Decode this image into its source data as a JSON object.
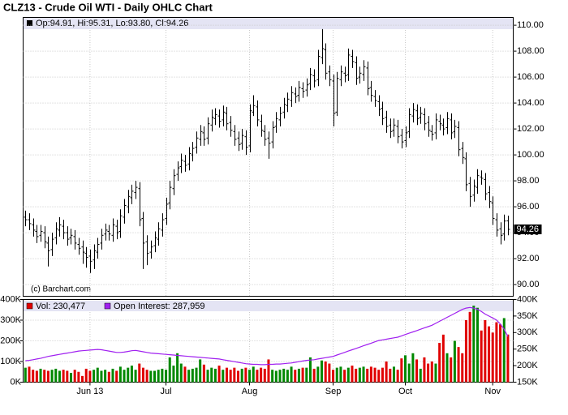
{
  "chart_data": [
    {
      "type": "ohlc",
      "title": "CLZ13 - Crude Oil WTI - Daily OHLC Chart",
      "legend": "Op:94.91, Hi:95.31, Lo:93.80, Cl:94.26",
      "annotation": "(c) Barchart.com",
      "close_label": "94.26",
      "color": "#000000",
      "legend_color": "#000000",
      "grid": true,
      "x": [
        0,
        1,
        2,
        3,
        4,
        5,
        6,
        7,
        8,
        9,
        10,
        11,
        12,
        13,
        14,
        15,
        16,
        17,
        18,
        19,
        20,
        21,
        22,
        23,
        24,
        25,
        26,
        27,
        28,
        29,
        30,
        31,
        32,
        33,
        34,
        35,
        36,
        37,
        38,
        39,
        40,
        41,
        42,
        43,
        44,
        45,
        46,
        47,
        48,
        49,
        50,
        51,
        52,
        53,
        54,
        55,
        56,
        57,
        58,
        59,
        60,
        61,
        62,
        63,
        64,
        65,
        66,
        67,
        68,
        69,
        70,
        71,
        72,
        73,
        74,
        75,
        76,
        77,
        78,
        79,
        80,
        81,
        82,
        83,
        84,
        85,
        86,
        87,
        88,
        89,
        90,
        91,
        92,
        93,
        94,
        95,
        96,
        97,
        98,
        99,
        100,
        101,
        102,
        103,
        104,
        105,
        106,
        107,
        108,
        109,
        110,
        111,
        112,
        113,
        114,
        115,
        116,
        117,
        118,
        119,
        120,
        121,
        122,
        123,
        124,
        125,
        126,
        127
      ],
      "open": [
        95.2,
        95.0,
        94.6,
        94.1,
        93.8,
        94.0,
        93.2,
        92.7,
        93.6,
        94.2,
        94.5,
        94.0,
        93.6,
        93.7,
        93.1,
        92.9,
        92.4,
        92.2,
        91.9,
        92.5,
        93.2,
        93.9,
        94.1,
        93.8,
        94.5,
        94.1,
        95.2,
        96.0,
        96.7,
        97.1,
        97.4,
        95.1,
        93.3,
        92.5,
        93.0,
        93.5,
        94.2,
        95.1,
        96.3,
        97.4,
        98.5,
        99.1,
        99.5,
        99.3,
        100.0,
        100.6,
        101.2,
        101.7,
        101.3,
        102.3,
        102.8,
        103.0,
        102.7,
        103.2,
        102.5,
        101.8,
        101.3,
        100.9,
        101.4,
        100.7,
        103.3,
        103.7,
        102.6,
        101.8,
        101.3,
        101.0,
        102.2,
        102.7,
        103.3,
        103.8,
        104.2,
        104.7,
        104.6,
        105.1,
        105.0,
        105.5,
        106.1,
        105.8,
        107.5,
        108.1,
        106.4,
        105.7,
        103.3,
        105.8,
        106.3,
        106.2,
        107.6,
        107.1,
        106.0,
        106.2,
        106.7,
        105.2,
        104.5,
        104.1,
        103.6,
        102.9,
        102.3,
        101.9,
        102.2,
        101.5,
        101.1,
        101.8,
        103.0,
        103.4,
        102.9,
        103.1,
        102.5,
        101.8,
        101.7,
        102.6,
        102.3,
        102.1,
        102.7,
        101.8,
        102.1,
        100.5,
        99.7,
        97.8,
        96.9,
        97.5,
        98.3,
        98.1,
        97.1,
        96.3,
        95.0,
        94.3,
        93.9,
        94.91
      ],
      "high": [
        95.7,
        95.5,
        95.1,
        94.6,
        94.6,
        94.5,
        93.7,
        94.0,
        94.8,
        95.2,
        95.0,
        94.5,
        94.3,
        94.2,
        93.6,
        93.4,
        92.9,
        92.7,
        93.1,
        93.6,
        94.3,
        94.7,
        94.6,
        95.1,
        95.0,
        95.8,
        96.6,
        97.3,
        97.7,
        98.0,
        97.9,
        95.6,
        93.8,
        93.4,
        94.1,
        94.8,
        95.5,
        96.7,
        98.0,
        98.9,
        99.5,
        100.1,
        100.0,
        100.6,
        101.0,
        101.8,
        102.3,
        102.2,
        102.9,
        103.5,
        103.6,
        103.5,
        103.8,
        103.7,
        103.0,
        102.3,
        101.8,
        102.0,
        101.9,
        103.9,
        104.6,
        104.2,
        103.1,
        102.3,
        101.8,
        102.6,
        103.3,
        103.7,
        104.4,
        104.8,
        105.3,
        105.2,
        105.7,
        105.6,
        105.9,
        106.7,
        106.6,
        108.1,
        109.7,
        108.6,
        106.9,
        106.2,
        106.4,
        106.9,
        106.8,
        108.2,
        108.1,
        107.6,
        106.8,
        107.3,
        107.2,
        105.7,
        105.0,
        104.6,
        104.1,
        103.4,
        102.8,
        102.8,
        102.7,
        102.0,
        102.2,
        103.6,
        104.0,
        103.9,
        103.7,
        103.6,
        103.0,
        102.3,
        103.2,
        103.1,
        102.8,
        103.3,
        103.2,
        102.7,
        102.6,
        101.0,
        100.2,
        98.3,
        98.1,
        98.9,
        98.8,
        98.6,
        97.6,
        96.8,
        95.5,
        94.8,
        95.4,
        95.31
      ],
      "low": [
        94.5,
        94.2,
        93.7,
        93.2,
        93.3,
        92.8,
        91.4,
        92.2,
        93.1,
        93.7,
        93.5,
        93.0,
        93.1,
        92.7,
        92.3,
        91.6,
        91.3,
        90.9,
        91.2,
        92.0,
        92.7,
        93.4,
        93.4,
        93.3,
        93.5,
        93.6,
        94.7,
        95.5,
        96.2,
        96.6,
        94.5,
        91.2,
        91.5,
        92.0,
        92.5,
        93.0,
        93.7,
        94.6,
        95.8,
        96.9,
        98.0,
        98.6,
        98.7,
        98.8,
        99.5,
        100.1,
        100.7,
        100.7,
        100.8,
        101.8,
        102.3,
        102.1,
        102.2,
        101.9,
        101.4,
        100.7,
        100.3,
        100.4,
        100.0,
        100.2,
        103.0,
        102.2,
        101.4,
        100.7,
        99.7,
        100.5,
        101.7,
        102.2,
        102.8,
        103.3,
        103.7,
        104.0,
        104.1,
        104.4,
        104.5,
        105.0,
        105.2,
        105.3,
        107.0,
        105.8,
        105.3,
        102.2,
        103.0,
        105.3,
        105.6,
        105.7,
        106.7,
        105.4,
        105.5,
        105.7,
        104.6,
        104.1,
        103.7,
        103.0,
        102.3,
        101.7,
        101.3,
        101.4,
        100.9,
        100.5,
        100.6,
        101.3,
        102.5,
        102.3,
        102.4,
        101.9,
        101.4,
        101.1,
        101.2,
        101.9,
        101.5,
        101.6,
        101.2,
        101.3,
        99.9,
        99.3,
        97.2,
        96.0,
        96.4,
        97.0,
        97.7,
        96.5,
        95.9,
        94.6,
        93.7,
        93.1,
        93.4,
        93.8
      ],
      "close": [
        95.0,
        94.7,
        94.2,
        93.7,
        94.1,
        93.3,
        92.6,
        93.5,
        94.3,
        94.6,
        94.0,
        93.5,
        93.8,
        93.2,
        92.8,
        92.5,
        92.1,
        91.8,
        92.6,
        93.1,
        93.8,
        94.2,
        93.9,
        94.6,
        94.0,
        95.3,
        96.1,
        96.8,
        97.2,
        97.5,
        95.0,
        93.2,
        92.4,
        92.9,
        93.6,
        94.3,
        95.0,
        96.2,
        97.5,
        98.4,
        99.0,
        99.6,
        99.2,
        100.1,
        100.5,
        101.3,
        101.8,
        101.2,
        102.4,
        102.9,
        103.1,
        102.6,
        103.3,
        102.4,
        101.9,
        101.2,
        100.8,
        101.5,
        100.6,
        103.4,
        103.8,
        102.7,
        101.9,
        101.2,
        100.9,
        102.1,
        102.8,
        103.2,
        103.9,
        104.3,
        104.8,
        104.5,
        105.2,
        104.9,
        105.4,
        106.2,
        105.7,
        107.6,
        108.2,
        106.3,
        105.8,
        103.2,
        105.9,
        106.4,
        106.1,
        107.7,
        107.2,
        105.9,
        106.3,
        106.8,
        105.1,
        104.6,
        104.2,
        103.5,
        102.8,
        102.2,
        101.8,
        102.3,
        101.4,
        101.0,
        101.7,
        103.1,
        103.5,
        102.8,
        103.2,
        102.4,
        101.9,
        101.6,
        102.7,
        102.4,
        102.0,
        102.8,
        101.7,
        102.2,
        100.4,
        99.8,
        97.7,
        96.8,
        97.6,
        98.4,
        98.2,
        97.0,
        96.4,
        95.1,
        94.2,
        93.8,
        94.9,
        94.26
      ],
      "ylim": [
        89.1,
        110.6
      ],
      "yticks": [
        {
          "value": 90,
          "label": "90.00"
        },
        {
          "value": 92,
          "label": "92.00"
        },
        {
          "value": 94,
          "label": "94.00"
        },
        {
          "value": 96,
          "label": "96.00"
        },
        {
          "value": 98,
          "label": "98.00"
        },
        {
          "value": 100,
          "label": "100.00"
        },
        {
          "value": 102,
          "label": "102.00"
        },
        {
          "value": 104,
          "label": "104.00"
        },
        {
          "value": 106,
          "label": "106.00"
        },
        {
          "value": 108,
          "label": "108.00"
        },
        {
          "value": 110,
          "label": "110.00"
        }
      ]
    },
    {
      "type": "volume",
      "grid": true,
      "up_color": "#008800",
      "series": [
        {
          "name": "Vol: 230,477",
          "color": "#e00000",
          "values": [
            70000,
            75000,
            60000,
            55000,
            65000,
            60000,
            55000,
            60000,
            65000,
            55000,
            60000,
            55000,
            45000,
            60000,
            50000,
            30000,
            65000,
            55000,
            60000,
            70000,
            55000,
            60000,
            50000,
            65000,
            55000,
            75000,
            60000,
            70000,
            80000,
            60000,
            90000,
            70000,
            60000,
            55000,
            55000,
            60000,
            65000,
            60000,
            120000,
            80000,
            140000,
            90000,
            75000,
            60000,
            65000,
            70000,
            110000,
            85000,
            60000,
            70000,
            65000,
            80000,
            60000,
            70000,
            60000,
            70000,
            55000,
            65000,
            70000,
            60000,
            75000,
            60000,
            70000,
            65000,
            110000,
            60000,
            55000,
            60000,
            65000,
            60000,
            75000,
            60000,
            65000,
            70000,
            70000,
            120000,
            65000,
            75000,
            105000,
            100000,
            90000,
            60000,
            70000,
            75000,
            60000,
            70000,
            80000,
            65000,
            70000,
            75000,
            65000,
            75000,
            70000,
            60000,
            70000,
            100000,
            65000,
            75000,
            60000,
            115000,
            130000,
            90000,
            140000,
            110000,
            65000,
            120000,
            90000,
            100000,
            90000,
            190000,
            230000,
            140000,
            120000,
            200000,
            170000,
            140000,
            300000,
            340000,
            370000,
            360000,
            250000,
            300000,
            270000,
            240000,
            290000,
            280000,
            310000,
            230477
          ]
        },
        {
          "name": "Open Interest: 287,959",
          "color": "#a020f0",
          "axis": "y2",
          "values": [
            215000,
            216000,
            218000,
            220000,
            222000,
            225000,
            228000,
            230000,
            232000,
            234000,
            236000,
            238000,
            240000,
            242000,
            244000,
            245000,
            246000,
            247000,
            248000,
            249000,
            248000,
            246000,
            244000,
            242000,
            240000,
            240000,
            241000,
            243000,
            245000,
            246000,
            244000,
            242000,
            240000,
            238000,
            237000,
            236000,
            235000,
            234000,
            233000,
            232000,
            231000,
            230000,
            229000,
            228000,
            227000,
            226000,
            225000,
            224000,
            223000,
            222000,
            221000,
            220000,
            218000,
            216000,
            214000,
            212000,
            210000,
            208000,
            206000,
            205000,
            204000,
            204000,
            203000,
            203000,
            204000,
            204000,
            205000,
            205000,
            206000,
            207000,
            208000,
            210000,
            212000,
            214000,
            216000,
            217000,
            218000,
            220000,
            222000,
            224000,
            226000,
            228000,
            232000,
            236000,
            240000,
            244000,
            248000,
            252000,
            256000,
            260000,
            264000,
            268000,
            272000,
            276000,
            278000,
            280000,
            282000,
            284000,
            286000,
            290000,
            294000,
            298000,
            302000,
            306000,
            310000,
            314000,
            318000,
            322000,
            328000,
            334000,
            340000,
            346000,
            352000,
            358000,
            364000,
            370000,
            374000,
            376000,
            374000,
            370000,
            364000,
            356000,
            350000,
            344000,
            338000,
            326000,
            310000,
            287959
          ]
        }
      ],
      "xlim": [
        -0.6,
        128.4
      ],
      "xticks": [
        {
          "value": 17,
          "label": "Jun 13"
        },
        {
          "value": 37,
          "label": "Jul"
        },
        {
          "value": 59,
          "label": "Aug"
        },
        {
          "value": 81,
          "label": "Sep"
        },
        {
          "value": 100,
          "label": "Oct"
        },
        {
          "value": 123,
          "label": "Nov"
        }
      ],
      "ylim": [
        0,
        400000
      ],
      "yticks": [
        {
          "value": 0,
          "label": "0K"
        },
        {
          "value": 100000,
          "label": "100K"
        },
        {
          "value": 200000,
          "label": "200K"
        },
        {
          "value": 300000,
          "label": "300K"
        },
        {
          "value": 400000,
          "label": "400K"
        }
      ],
      "y2lim": [
        150000,
        400000
      ],
      "y2ticks": [
        {
          "value": 150000,
          "label": "150K"
        },
        {
          "value": 200000,
          "label": "200K"
        },
        {
          "value": 250000,
          "label": "250K"
        },
        {
          "value": 300000,
          "label": "300K"
        },
        {
          "value": 350000,
          "label": "350K"
        },
        {
          "value": 400000,
          "label": "400K"
        }
      ]
    }
  ]
}
